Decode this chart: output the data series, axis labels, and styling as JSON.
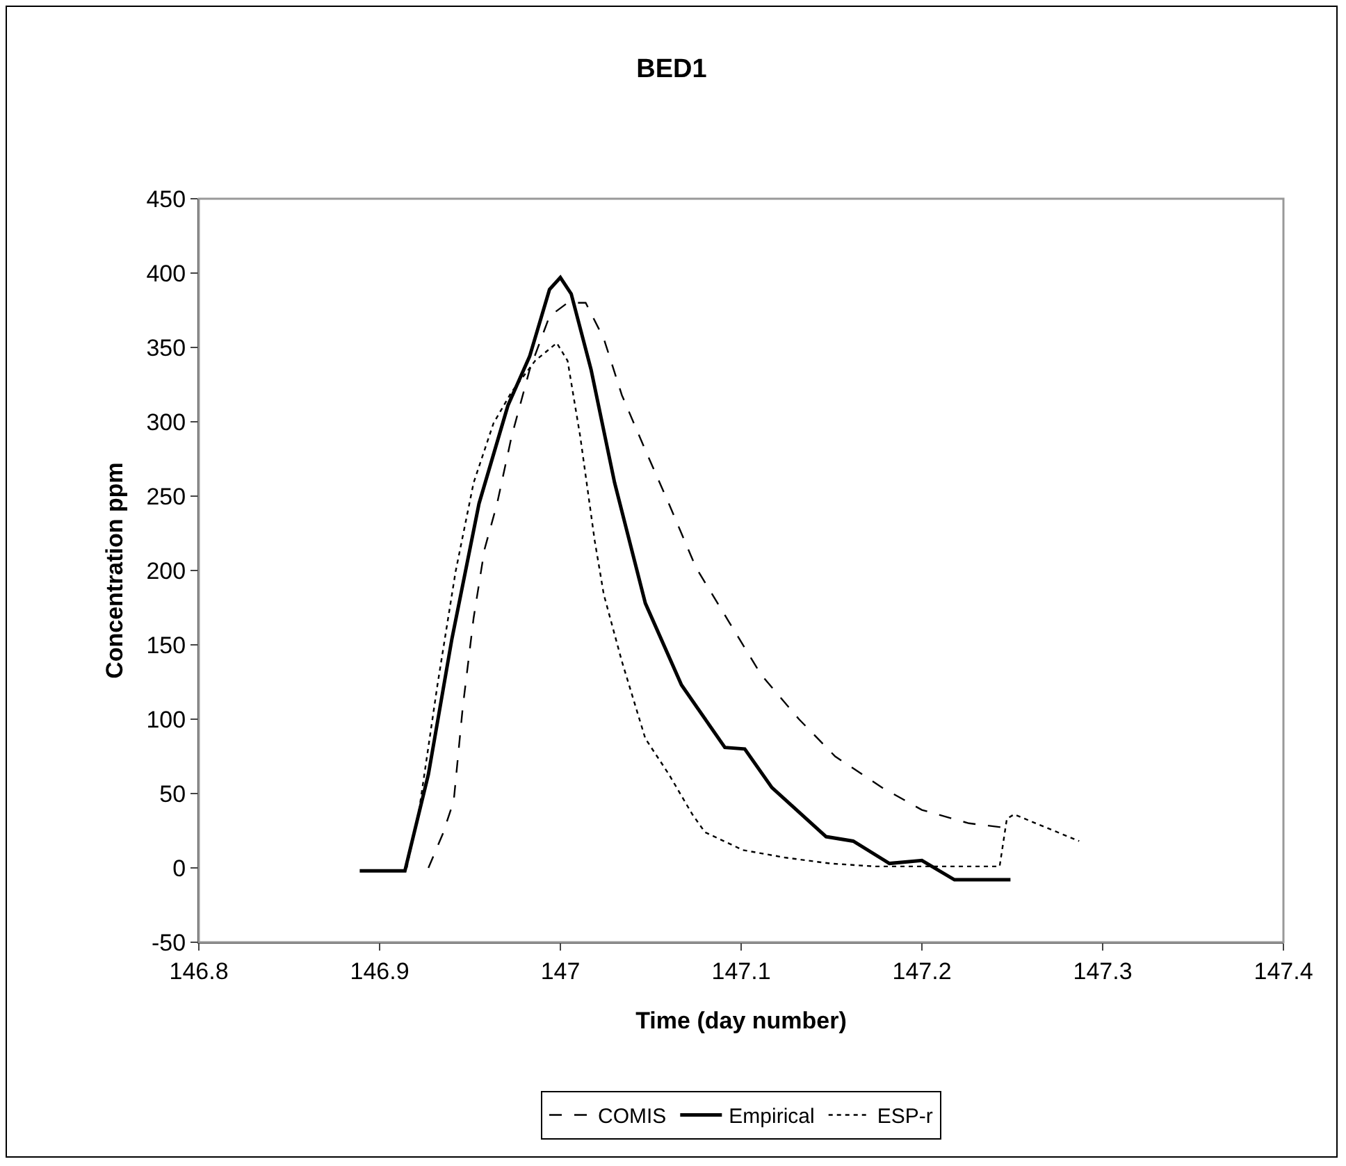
{
  "chart_data": {
    "type": "line",
    "title": "BED1",
    "xlabel": "Time (day number)",
    "ylabel": "Concentration ppm",
    "xlim": [
      146.8,
      147.4
    ],
    "xticks": [
      146.8,
      146.9,
      147,
      147.1,
      147.2,
      147.3,
      147.4
    ],
    "ylim": [
      -50,
      450
    ],
    "yticks": [
      -50,
      0,
      50,
      100,
      150,
      200,
      250,
      300,
      350,
      400,
      450
    ],
    "grid": false,
    "legend": "bottom",
    "marker": "none",
    "series": [
      {
        "name": "COMIS",
        "color": "#000000",
        "line_style": "dashed",
        "x": [
          146.927,
          146.935,
          146.941,
          146.946,
          146.952,
          146.958,
          146.965,
          146.973,
          146.983,
          146.994,
          147.004,
          147.014,
          147.024,
          147.034,
          147.047,
          147.06,
          147.075,
          147.093,
          147.111,
          147.132,
          147.152,
          147.178,
          147.2,
          147.226,
          147.246
        ],
        "values": [
          0,
          23,
          45,
          108,
          168,
          214,
          245,
          290,
          335,
          371,
          380,
          380,
          356,
          318,
          281,
          245,
          202,
          166,
          130,
          100,
          75,
          54,
          39,
          30,
          27
        ]
      },
      {
        "name": "Empirical",
        "color": "#000000",
        "line_style": "solid",
        "x": [
          146.889,
          146.914,
          146.927,
          146.94,
          146.955,
          146.971,
          146.983,
          146.994,
          147.0,
          147.006,
          147.017,
          147.03,
          147.047,
          147.067,
          147.091,
          147.102,
          147.117,
          147.147,
          147.162,
          147.182,
          147.2,
          147.218,
          147.249
        ],
        "values": [
          -2,
          -2,
          63,
          154,
          245,
          311,
          344,
          389,
          397,
          386,
          335,
          259,
          178,
          123,
          81,
          80,
          54,
          21,
          18,
          3,
          5,
          -8,
          -8
        ]
      },
      {
        "name": "ESP-r",
        "color": "#000000",
        "line_style": "dotted",
        "x": [
          146.915,
          146.922,
          146.932,
          146.942,
          146.952,
          146.963,
          146.973,
          146.986,
          146.998,
          147.004,
          147.011,
          147.019,
          147.024,
          147.034,
          147.047,
          147.06,
          147.073,
          147.08,
          147.101,
          147.124,
          147.149,
          147.174,
          147.243,
          147.247,
          147.251,
          147.287
        ],
        "values": [
          0,
          40,
          123,
          199,
          259,
          299,
          320,
          341,
          353,
          341,
          290,
          220,
          184,
          139,
          87,
          63,
          36,
          24,
          12,
          7,
          3,
          1,
          1,
          33,
          36,
          18
        ]
      }
    ]
  }
}
